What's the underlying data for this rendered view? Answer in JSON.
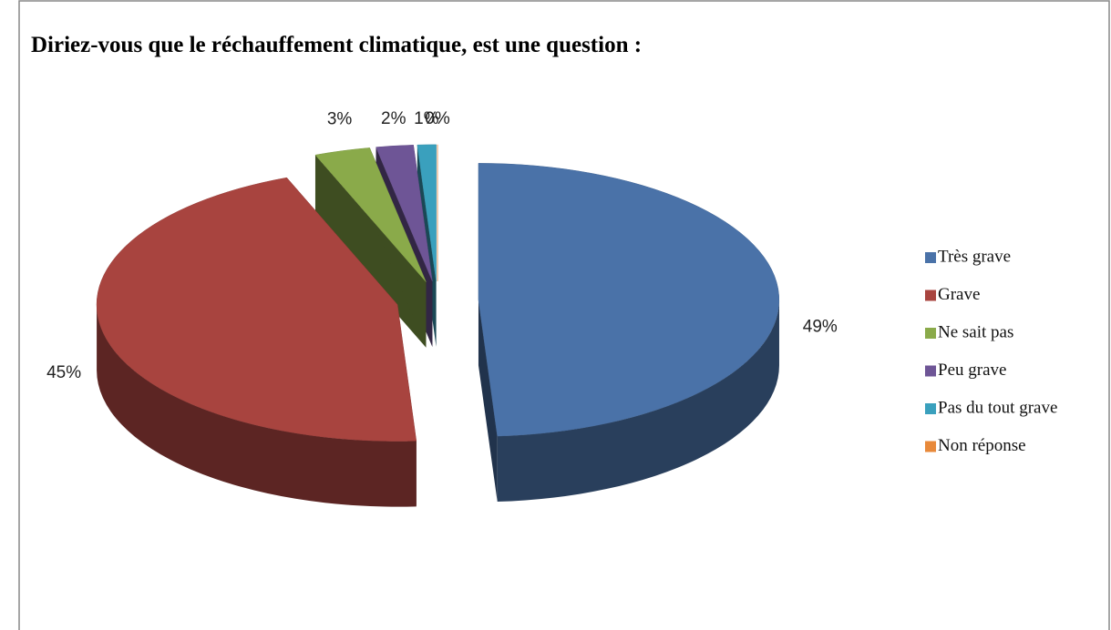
{
  "chart_data": {
    "type": "pie3d",
    "title": "Diriez-vous que le réchauffement climatique, est une question :",
    "categories": [
      "Très grave",
      "Grave",
      "Ne sait pas",
      "Peu grave",
      "Pas du tout grave",
      "Non réponse"
    ],
    "values": [
      49,
      45,
      3,
      2,
      1,
      0
    ],
    "value_labels": [
      "49%",
      "45%",
      "3%",
      "2%",
      "1%",
      "0%"
    ],
    "colors": [
      "#4a72a8",
      "#a8443f",
      "#8aaa4a",
      "#6e5596",
      "#3aa0bd",
      "#e8893a"
    ],
    "legend": "right"
  }
}
